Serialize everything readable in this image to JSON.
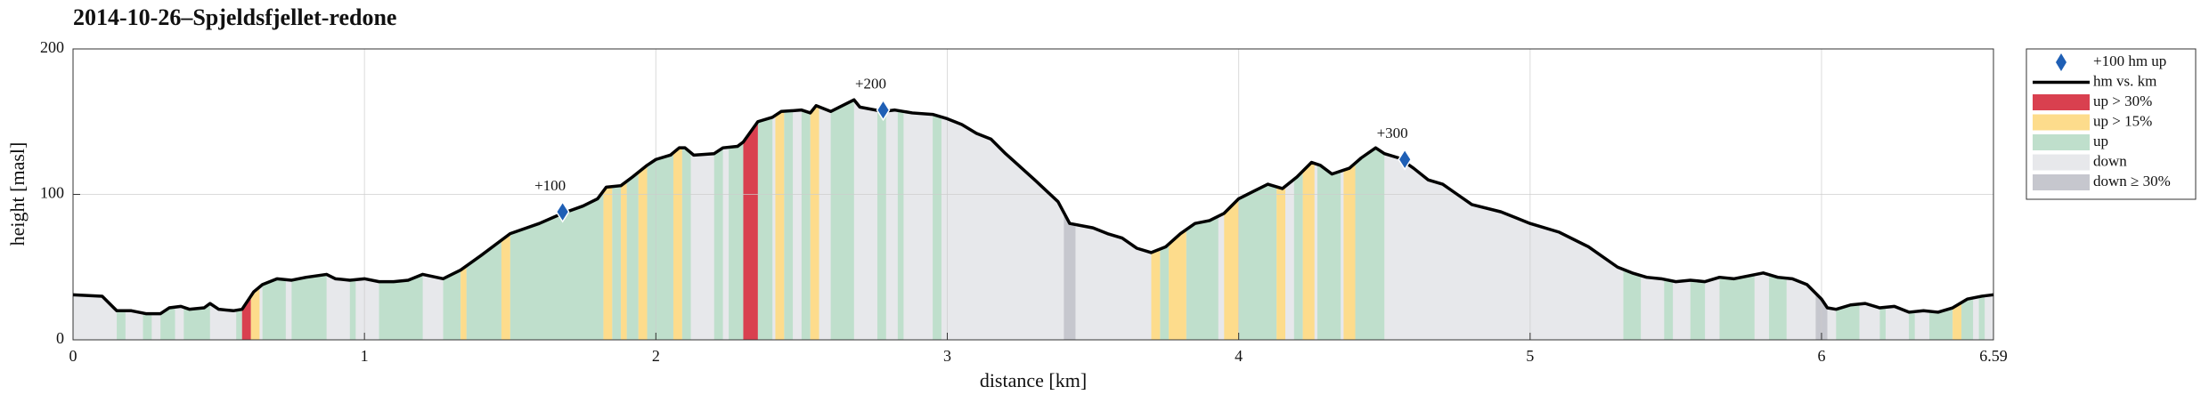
{
  "chart_data": {
    "type": "elevation-profile",
    "title": "2014-10-26–Spjeldsfjellet-redone",
    "x_label": "distance [km]",
    "y_label": "height [masl]",
    "xlim": [
      0,
      6.59
    ],
    "ylim": [
      0,
      200
    ],
    "xticks": [
      0,
      1,
      2,
      3,
      4,
      5,
      6,
      6.59
    ],
    "yticks": [
      0,
      100,
      200
    ],
    "grid": true,
    "line": {
      "name": "hm vs. km",
      "color": "#000000",
      "x": [
        0,
        0.1,
        0.15,
        0.2,
        0.25,
        0.3,
        0.33,
        0.37,
        0.4,
        0.45,
        0.47,
        0.5,
        0.55,
        0.58,
        0.62,
        0.65,
        0.7,
        0.75,
        0.8,
        0.87,
        0.9,
        0.95,
        1.0,
        1.05,
        1.1,
        1.15,
        1.2,
        1.27,
        1.33,
        1.4,
        1.5,
        1.6,
        1.68,
        1.75,
        1.8,
        1.83,
        1.88,
        1.92,
        1.97,
        2.0,
        2.05,
        2.08,
        2.1,
        2.13,
        2.2,
        2.23,
        2.28,
        2.3,
        2.35,
        2.4,
        2.43,
        2.5,
        2.53,
        2.55,
        2.6,
        2.68,
        2.7,
        2.78,
        2.82,
        2.88,
        2.95,
        3.0,
        3.05,
        3.1,
        3.15,
        3.2,
        3.3,
        3.38,
        3.42,
        3.5,
        3.55,
        3.6,
        3.65,
        3.7,
        3.75,
        3.8,
        3.85,
        3.9,
        3.95,
        4.0,
        4.05,
        4.1,
        4.15,
        4.2,
        4.25,
        4.28,
        4.32,
        4.38,
        4.42,
        4.47,
        4.5,
        4.55,
        4.6,
        4.65,
        4.7,
        4.75,
        4.8,
        4.9,
        4.95,
        5.0,
        5.1,
        5.2,
        5.25,
        5.3,
        5.35,
        5.4,
        5.45,
        5.5,
        5.55,
        5.6,
        5.65,
        5.7,
        5.75,
        5.8,
        5.85,
        5.9,
        5.95,
        6.0,
        6.02,
        6.05,
        6.1,
        6.15,
        6.2,
        6.25,
        6.3,
        6.35,
        6.4,
        6.45,
        6.5,
        6.55,
        6.59
      ],
      "values": [
        31,
        30,
        20,
        20,
        18,
        18,
        22,
        23,
        21,
        22,
        25,
        21,
        20,
        21,
        33,
        38,
        42,
        41,
        43,
        45,
        42,
        41,
        42,
        40,
        40,
        41,
        45,
        42,
        48,
        58,
        73,
        80,
        87,
        92,
        97,
        105,
        106,
        112,
        120,
        124,
        127,
        132,
        132,
        127,
        128,
        132,
        133,
        136,
        150,
        153,
        157,
        158,
        156,
        161,
        157,
        165,
        160,
        157,
        158,
        156,
        155,
        152,
        148,
        142,
        138,
        128,
        110,
        95,
        80,
        77,
        73,
        70,
        63,
        60,
        64,
        73,
        80,
        82,
        87,
        97,
        102,
        107,
        104,
        112,
        122,
        120,
        114,
        118,
        125,
        132,
        128,
        125,
        118,
        110,
        107,
        100,
        93,
        88,
        84,
        80,
        74,
        64,
        57,
        50,
        46,
        43,
        42,
        40,
        41,
        40,
        43,
        42,
        44,
        46,
        43,
        42,
        38,
        28,
        22,
        21,
        24,
        25,
        22,
        23,
        19,
        20,
        19,
        22,
        28,
        30,
        31
      ]
    },
    "markers": {
      "name": "+100 hm up",
      "color": "#1f5fb5",
      "x": [
        1.68,
        2.78,
        4.57
      ],
      "values": [
        88,
        158,
        124
      ],
      "labels": [
        "+100",
        "+200",
        "+300"
      ]
    },
    "kinds": [
      {
        "name": "up > 30%",
        "color": "#d9404f"
      },
      {
        "name": "up > 15%",
        "color": "#fddc8c"
      },
      {
        "name": "up",
        "color": "#bfdfcc"
      },
      {
        "name": "down",
        "color": "#e7e8eb"
      },
      {
        "name": "down ≥ 30%",
        "color": "#c6c7ce"
      }
    ],
    "area_kind": 3,
    "bands": [
      [
        0.15,
        0.18,
        2
      ],
      [
        0.24,
        0.27,
        2
      ],
      [
        0.3,
        0.35,
        2
      ],
      [
        0.38,
        0.47,
        2
      ],
      [
        0.56,
        0.58,
        2
      ],
      [
        0.65,
        0.73,
        2
      ],
      [
        0.75,
        0.87,
        2
      ],
      [
        0.95,
        0.97,
        2
      ],
      [
        1.05,
        1.2,
        2
      ],
      [
        1.27,
        1.33,
        2
      ],
      [
        1.35,
        1.47,
        2
      ],
      [
        1.5,
        1.82,
        2
      ],
      [
        1.85,
        1.88,
        2
      ],
      [
        1.9,
        1.94,
        2
      ],
      [
        1.97,
        2.06,
        2
      ],
      [
        2.09,
        2.12,
        2
      ],
      [
        2.2,
        2.23,
        2
      ],
      [
        2.25,
        2.3,
        2
      ],
      [
        2.35,
        2.4,
        2
      ],
      [
        2.44,
        2.47,
        2
      ],
      [
        2.5,
        2.53,
        2
      ],
      [
        2.6,
        2.68,
        2
      ],
      [
        2.76,
        2.79,
        2
      ],
      [
        2.83,
        2.85,
        2
      ],
      [
        2.95,
        2.98,
        2
      ],
      [
        3.73,
        3.76,
        2
      ],
      [
        3.82,
        3.93,
        2
      ],
      [
        4.0,
        4.13,
        2
      ],
      [
        4.19,
        4.22,
        2
      ],
      [
        4.27,
        4.35,
        2
      ],
      [
        4.4,
        4.5,
        2
      ],
      [
        5.32,
        5.38,
        2
      ],
      [
        5.46,
        5.49,
        2
      ],
      [
        5.55,
        5.6,
        2
      ],
      [
        5.65,
        5.77,
        2
      ],
      [
        5.82,
        5.88,
        2
      ],
      [
        6.05,
        6.13,
        2
      ],
      [
        6.2,
        6.22,
        2
      ],
      [
        6.3,
        6.32,
        2
      ],
      [
        6.37,
        6.45,
        2
      ],
      [
        6.48,
        6.52,
        2
      ],
      [
        6.54,
        6.56,
        2
      ],
      [
        0.61,
        0.64,
        1
      ],
      [
        1.33,
        1.35,
        1
      ],
      [
        1.47,
        1.5,
        1
      ],
      [
        1.82,
        1.85,
        1
      ],
      [
        1.88,
        1.9,
        1
      ],
      [
        1.94,
        1.97,
        1
      ],
      [
        2.06,
        2.09,
        1
      ],
      [
        2.41,
        2.44,
        1
      ],
      [
        2.53,
        2.56,
        1
      ],
      [
        3.7,
        3.73,
        1
      ],
      [
        3.76,
        3.82,
        1
      ],
      [
        3.95,
        4.0,
        1
      ],
      [
        4.13,
        4.16,
        1
      ],
      [
        4.22,
        4.26,
        1
      ],
      [
        4.36,
        4.4,
        1
      ],
      [
        6.45,
        6.48,
        1
      ],
      [
        0.58,
        0.61,
        0
      ],
      [
        2.3,
        2.35,
        0
      ],
      [
        3.4,
        3.44,
        4
      ],
      [
        5.98,
        6.02,
        4
      ]
    ]
  }
}
